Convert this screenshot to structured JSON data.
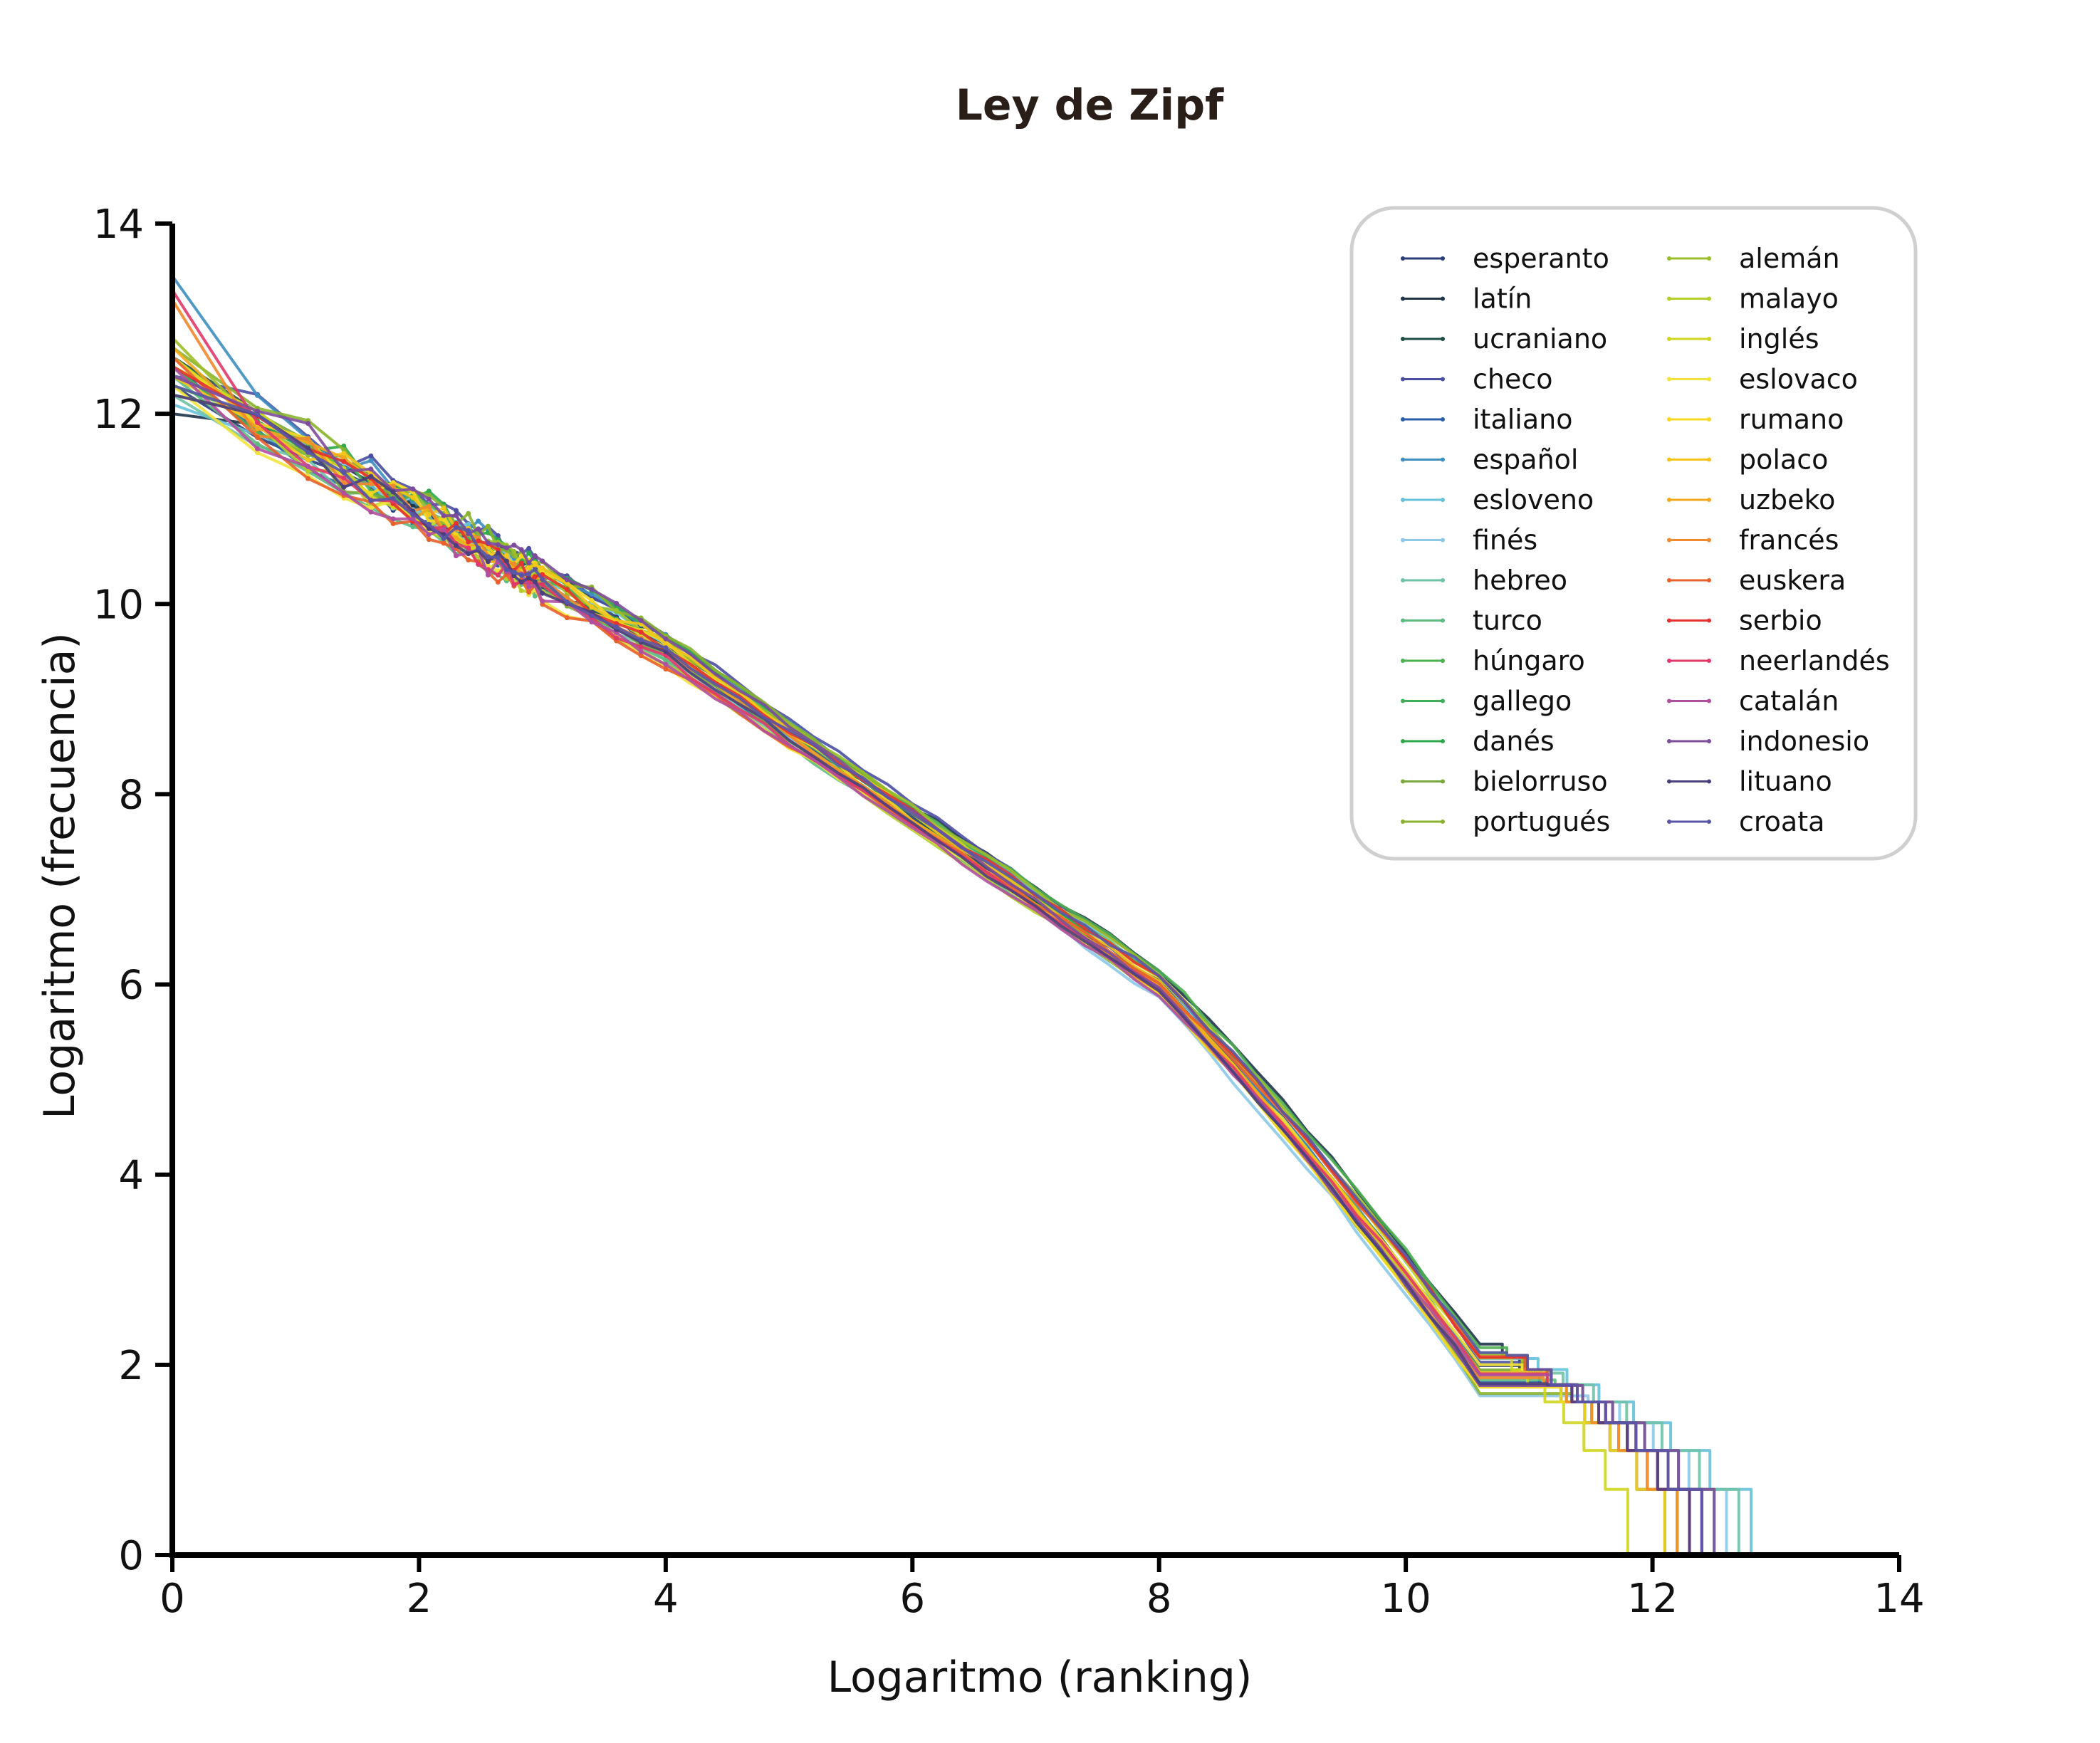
{
  "chart_data": {
    "type": "line",
    "title": "Ley de Zipf",
    "xlabel": "Logaritmo (ranking)",
    "ylabel": "Logaritmo (frecuencia)",
    "xlim": [
      0,
      14
    ],
    "ylim": [
      0,
      14
    ],
    "xticks": [
      "0",
      "2",
      "4",
      "6",
      "8",
      "10",
      "12",
      "14"
    ],
    "yticks": [
      "0",
      "2",
      "4",
      "6",
      "8",
      "10",
      "12",
      "14"
    ],
    "grid": false,
    "legend_position": "top-right",
    "legend_columns": 2,
    "series": [
      {
        "name": "esperanto",
        "color": "#2c3e7a",
        "y0": 12.3,
        "xmax": 12.4
      },
      {
        "name": "latín",
        "color": "#1f3349",
        "y0": 12.0,
        "xmax": 12.1
      },
      {
        "name": "ucraniano",
        "color": "#1d4d44",
        "y0": 12.6,
        "xmax": 12.2
      },
      {
        "name": "checo",
        "color": "#4a4fa3",
        "y0": 12.4,
        "xmax": 12.3
      },
      {
        "name": "italiano",
        "color": "#2a5ea8",
        "y0": 12.5,
        "xmax": 12.3
      },
      {
        "name": "español",
        "color": "#3f8fc0",
        "y0": 13.45,
        "xmax": 12.4
      },
      {
        "name": "esloveno",
        "color": "#66c1d9",
        "y0": 12.1,
        "xmax": 12.8
      },
      {
        "name": "finés",
        "color": "#8cc9e8",
        "y0": 12.4,
        "xmax": 12.6
      },
      {
        "name": "hebreo",
        "color": "#6fc2a8",
        "y0": 12.2,
        "xmax": 12.7
      },
      {
        "name": "turco",
        "color": "#5dbb82",
        "y0": 12.4,
        "xmax": 12.5
      },
      {
        "name": "húngaro",
        "color": "#4caf50",
        "y0": 12.5,
        "xmax": 12.4
      },
      {
        "name": "gallego",
        "color": "#3fae58",
        "y0": 12.3,
        "xmax": 12.3
      },
      {
        "name": "danés",
        "color": "#2ea84a",
        "y0": 12.6,
        "xmax": 12.2
      },
      {
        "name": "bielorruso",
        "color": "#7aa83a",
        "y0": 12.2,
        "xmax": 12.3
      },
      {
        "name": "portugués",
        "color": "#8ab22e",
        "y0": 12.7,
        "xmax": 12.3
      },
      {
        "name": "alemán",
        "color": "#9bbf2a",
        "y0": 12.8,
        "xmax": 12.2
      },
      {
        "name": "malayo",
        "color": "#b5cf2a",
        "y0": 12.4,
        "xmax": 12.2
      },
      {
        "name": "inglés",
        "color": "#cfd61f",
        "y0": 12.5,
        "xmax": 11.8
      },
      {
        "name": "eslovaco",
        "color": "#f2e33c",
        "y0": 12.3,
        "xmax": 12.2
      },
      {
        "name": "rumano",
        "color": "#f6d820",
        "y0": 12.6,
        "xmax": 12.1
      },
      {
        "name": "polaco",
        "color": "#f5c518",
        "y0": 12.4,
        "xmax": 12.3
      },
      {
        "name": "uzbeko",
        "color": "#f3a81d",
        "y0": 12.7,
        "xmax": 12.3
      },
      {
        "name": "francés",
        "color": "#ef8a2e",
        "y0": 13.2,
        "xmax": 12.2
      },
      {
        "name": "euskera",
        "color": "#e8602c",
        "y0": 12.6,
        "xmax": 12.3
      },
      {
        "name": "serbio",
        "color": "#e3322f",
        "y0": 12.5,
        "xmax": 12.4
      },
      {
        "name": "neerlandés",
        "color": "#e0386a",
        "y0": 13.3,
        "xmax": 12.3
      },
      {
        "name": "catalán",
        "color": "#b04fa0",
        "y0": 12.5,
        "xmax": 12.4
      },
      {
        "name": "indonesio",
        "color": "#7d4b9c",
        "y0": 12.4,
        "xmax": 12.5
      },
      {
        "name": "lituano",
        "color": "#4b3f7d",
        "y0": 12.2,
        "xmax": 12.3
      },
      {
        "name": "croata",
        "color": "#5a56a6",
        "y0": 12.3,
        "xmax": 12.4
      }
    ]
  }
}
